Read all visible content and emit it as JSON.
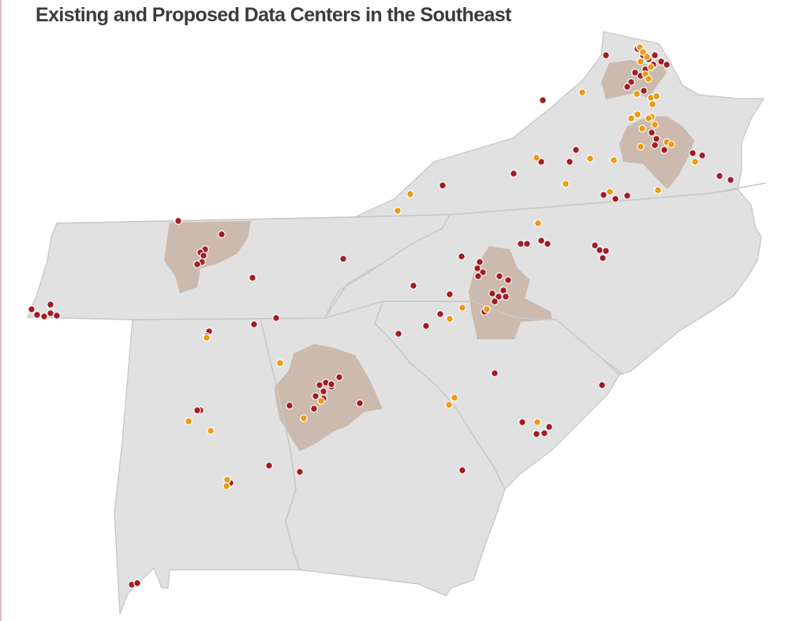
{
  "title": "Existing and Proposed Data Centers in the Southeast",
  "colors": {
    "background": "#ffffff",
    "land": "#e1e1e1",
    "state_border": "#c9c9c9",
    "metro_area": "#c8b3a4",
    "existing": "#a31c24",
    "proposed": "#eb9a12"
  },
  "categories": [
    "existing",
    "proposed"
  ],
  "metro_areas": [
    "northern-virginia",
    "richmond",
    "nashville",
    "charlotte",
    "atlanta"
  ]
}
